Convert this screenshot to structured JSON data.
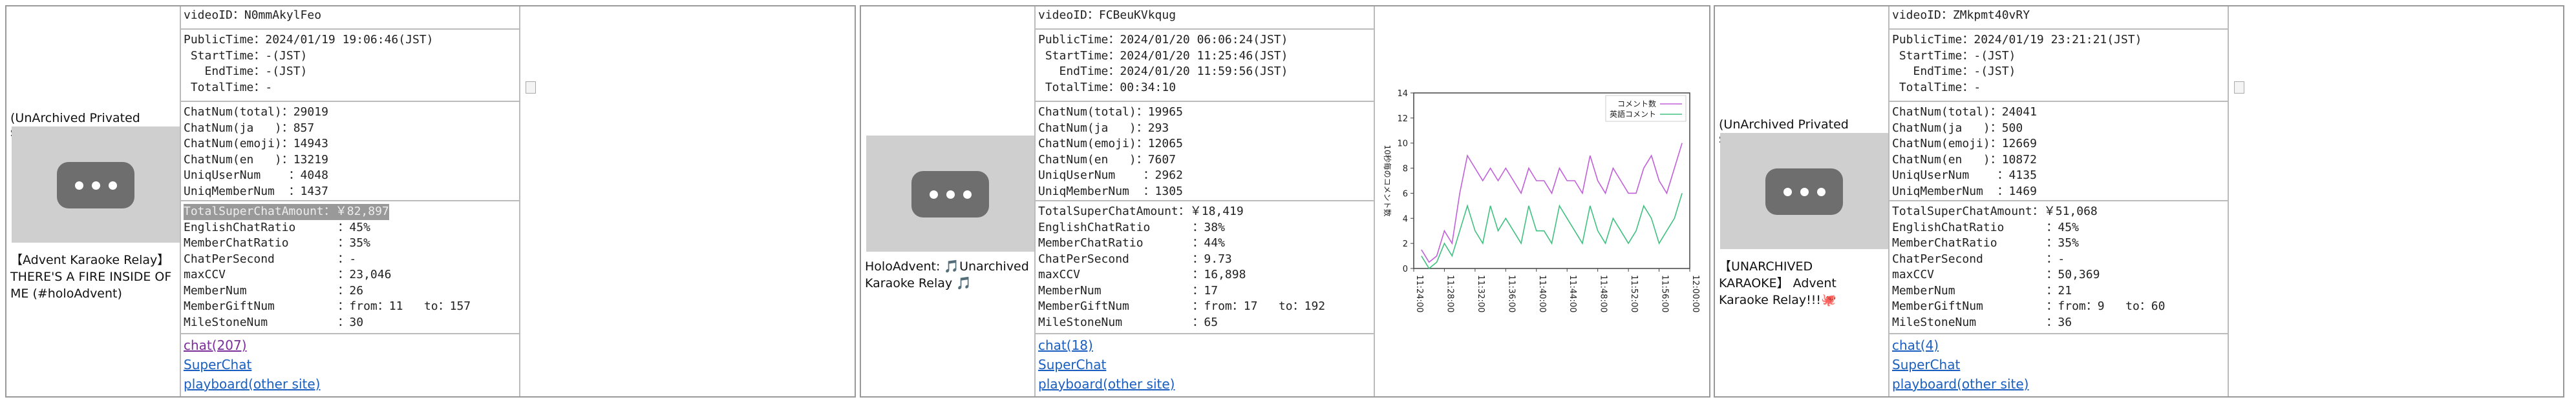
{
  "panels": [
    {
      "note": "(UnArchived Privated stream)",
      "title": "【Advent Karaoke Relay】 THERE'S A FIRE INSIDE OF ME (#holoAdvent)",
      "selected": true,
      "id_line": "videoID：N0mmAkylFeo",
      "info": [
        "PublicTime：2024/01/19 19:06:46(JST)",
        " StartTime：-(JST)",
        "   EndTime：-(JST)",
        " TotalTime：-"
      ],
      "chat": [
        "ChatNum(total)：29019",
        "ChatNum(ja   )：857",
        "ChatNum(emoji)：14943",
        "ChatNum(en   )：13219",
        "UniqUserNum    ：4048",
        "UniqMemberNum  ：1437"
      ],
      "stats": [
        "TotalSuperChatAmount：￥82,897",
        "EnglishChatRatio      ：45%",
        "MemberChatRatio       ：35%",
        "ChatPerSecond         ：-",
        "maxCCV                ：23,046",
        "MemberNum             ：26",
        "MemberGiftNum         ：from：11   to：157",
        "MileStoneNum          ：30"
      ],
      "links": [
        "chat(207)",
        "SuperChat",
        "playboard(other site)"
      ],
      "visited": true
    },
    {
      "title": "HoloAdvent: 🎵Unarchived Karaoke Relay 🎵",
      "id_line": "videoID：FCBeuKVkqug",
      "info": [
        "PublicTime：2024/01/20 06:06:24(JST)",
        " StartTime：2024/01/20 11:25:46(JST)",
        "   EndTime：2024/01/20 11:59:56(JST)",
        " TotalTime：00:34:10"
      ],
      "chat": [
        "ChatNum(total)：19965",
        "ChatNum(ja   )：293",
        "ChatNum(emoji)：12065",
        "ChatNum(en   )：7607",
        "UniqUserNum    ：2962",
        "UniqMemberNum  ：1305"
      ],
      "stats": [
        "TotalSuperChatAmount：￥18,419",
        "EnglishChatRatio      ：38%",
        "MemberChatRatio       ：44%",
        "ChatPerSecond         ：9.73",
        "maxCCV                ：16,898",
        "MemberNum             ：17",
        "MemberGiftNum         ：from：17   to：192",
        "MileStoneNum          ：65"
      ],
      "links": [
        "chat(18)",
        "SuperChat",
        "playboard(other site)"
      ]
    },
    {
      "note": "(UnArchived Privated stream)",
      "title": "【UNARCHIVED KARAOKE】 Advent Karaoke Relay!!!🐙",
      "id_line": "videoID：ZMkpmt40vRY",
      "info": [
        "PublicTime：2024/01/19 23:21:21(JST)",
        " StartTime：-(JST)",
        "   EndTime：-(JST)",
        " TotalTime：-"
      ],
      "chat": [
        "ChatNum(total)：24041",
        "ChatNum(ja   )：500",
        "ChatNum(emoji)：12669",
        "ChatNum(en   )：10872",
        "UniqUserNum    ：4135",
        "UniqMemberNum  ：1469"
      ],
      "stats": [
        "TotalSuperChatAmount：￥51,068",
        "EnglishChatRatio      ：45%",
        "MemberChatRatio       ：35%",
        "ChatPerSecond         ：-",
        "maxCCV                ：50,369",
        "MemberNum             ：21",
        "MemberGiftNum         ：from：9   to：60",
        "MileStoneNum          ：36"
      ],
      "links": [
        "chat(4)",
        "SuperChat",
        "playboard(other site)"
      ]
    }
  ],
  "chart_data": {
    "type": "line",
    "y_label": "10秒毎のコメント数",
    "x": [
      "11:25:00",
      "11:26:00",
      "11:27:00",
      "11:28:00",
      "11:29:00",
      "11:30:00",
      "11:31:00",
      "11:32:00",
      "11:33:00",
      "11:34:00",
      "11:35:00",
      "11:36:00",
      "11:37:00",
      "11:38:00",
      "11:39:00",
      "11:40:00",
      "11:41:00",
      "11:42:00",
      "11:43:00",
      "11:44:00",
      "11:45:00",
      "11:46:00",
      "11:47:00",
      "11:48:00",
      "11:49:00",
      "11:50:00",
      "11:51:00",
      "11:52:00",
      "11:53:00",
      "11:54:00",
      "11:55:00",
      "11:56:00",
      "11:57:00",
      "11:58:00",
      "11:59:00"
    ],
    "series": [
      {
        "name": "コメント数",
        "color": "#c060d8",
        "values": [
          1.5,
          0.5,
          1,
          3,
          2,
          6,
          9,
          8,
          7,
          8,
          7,
          8,
          7,
          6,
          8,
          7,
          7,
          6,
          8,
          7,
          7,
          6,
          9,
          7,
          6,
          8,
          7,
          6,
          6,
          8,
          9,
          7,
          6,
          8,
          10
        ]
      },
      {
        "name": "英語コメント",
        "color": "#40c080",
        "values": [
          1,
          0,
          0.5,
          2,
          1,
          3,
          5,
          3,
          2,
          5,
          3,
          4,
          3,
          2,
          5,
          3,
          3,
          2,
          5,
          4,
          3,
          2,
          5,
          3,
          2,
          4,
          3,
          2,
          3,
          5,
          4,
          2,
          3,
          4,
          6
        ]
      }
    ],
    "xlim": [
      "11:24:00",
      "12:00:00"
    ],
    "xticks": [
      "11:24:00",
      "11:28:00",
      "11:32:00",
      "11:36:00",
      "11:40:00",
      "11:44:00",
      "11:48:00",
      "11:52:00",
      "11:56:00",
      "12:00:00"
    ],
    "ylim": [
      0,
      14
    ],
    "yticks": [
      0,
      2,
      4,
      6,
      8,
      10,
      12,
      14
    ],
    "legend": "upper right"
  }
}
